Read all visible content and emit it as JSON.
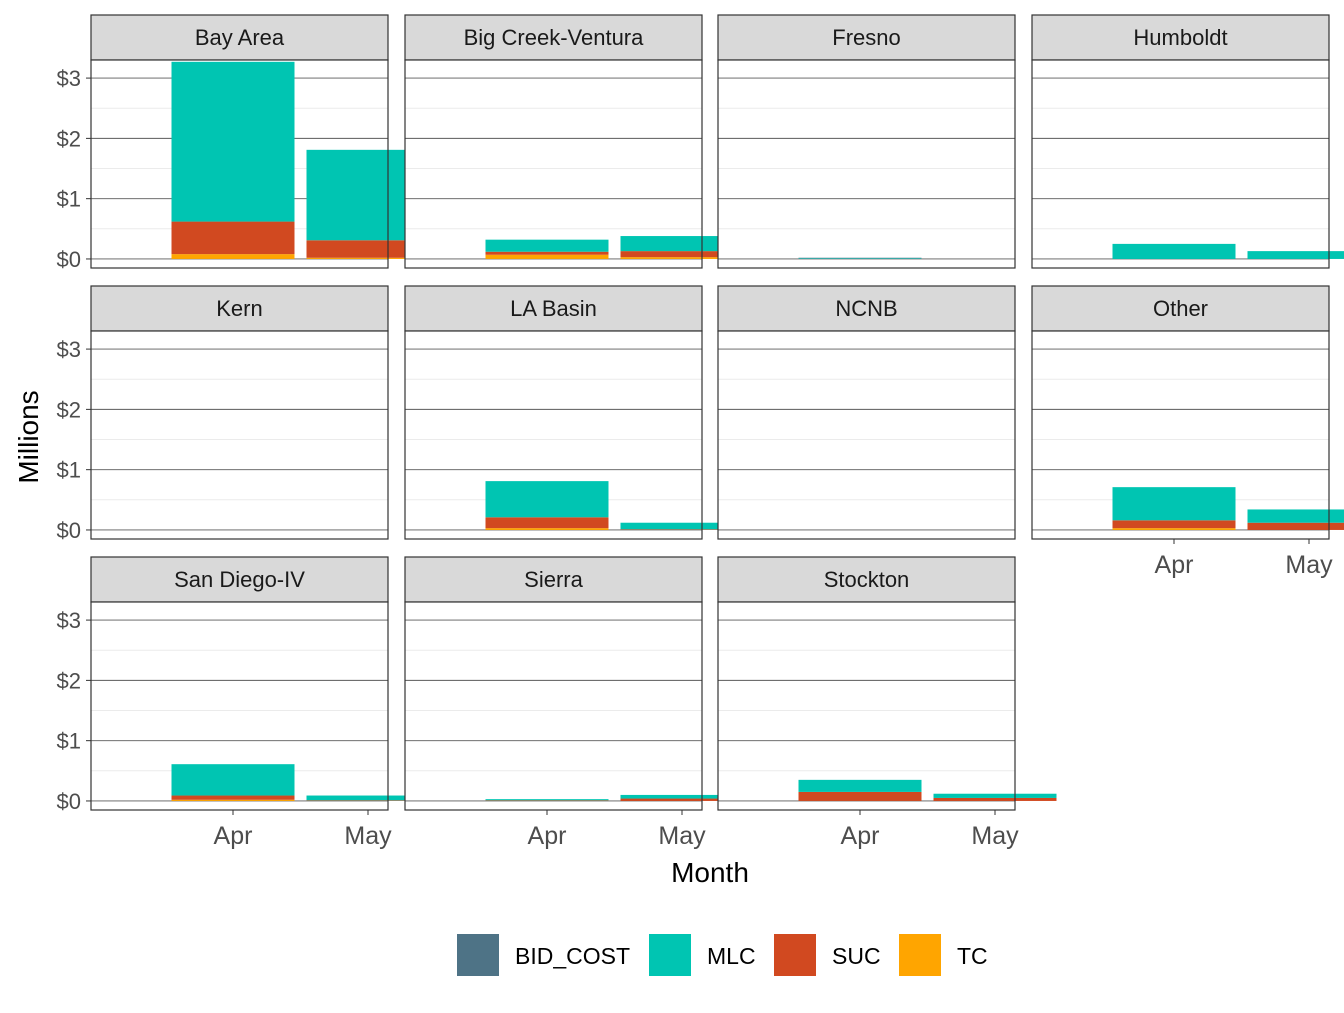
{
  "chart_data": {
    "type": "bar",
    "stacked": true,
    "facet_layout": "4 columns, 3 rows",
    "xlabel": "Month",
    "ylabel": "Millions",
    "ylim": [
      0,
      3.3
    ],
    "yticks": [
      0,
      1,
      2,
      3
    ],
    "ytick_labels": [
      "$0",
      "$1",
      "$2",
      "$3"
    ],
    "categories": [
      "Apr",
      "May"
    ],
    "series_order": [
      "BID_COST",
      "MLC",
      "SUC",
      "TC"
    ],
    "stack_order_bottom_to_top": [
      "TC",
      "SUC",
      "MLC",
      "BID_COST"
    ],
    "legend": {
      "position": "bottom",
      "items": [
        {
          "name": "BID_COST",
          "color": "#4E7386"
        },
        {
          "name": "MLC",
          "color": "#00C5B2"
        },
        {
          "name": "SUC",
          "color": "#D14920"
        },
        {
          "name": "TC",
          "color": "#FFA500"
        }
      ]
    },
    "grid": true,
    "panels": [
      {
        "title": "Bay Area",
        "values": {
          "Apr": {
            "BID_COST": 0,
            "MLC": 2.65,
            "SUC": 0.54,
            "TC": 0.08
          },
          "May": {
            "BID_COST": 0,
            "MLC": 1.5,
            "SUC": 0.29,
            "TC": 0.02
          }
        }
      },
      {
        "title": "Big Creek-Ventura",
        "values": {
          "Apr": {
            "BID_COST": 0,
            "MLC": 0.2,
            "SUC": 0.05,
            "TC": 0.07
          },
          "May": {
            "BID_COST": 0,
            "MLC": 0.25,
            "SUC": 0.1,
            "TC": 0.03
          }
        }
      },
      {
        "title": "Fresno",
        "values": {
          "Apr": {
            "BID_COST": 0.01,
            "MLC": 0.01,
            "SUC": 0,
            "TC": 0
          },
          "May": {
            "BID_COST": 0,
            "MLC": 0,
            "SUC": 0,
            "TC": 0
          }
        }
      },
      {
        "title": "Humboldt",
        "values": {
          "Apr": {
            "BID_COST": 0,
            "MLC": 0.25,
            "SUC": 0,
            "TC": 0
          },
          "May": {
            "BID_COST": 0,
            "MLC": 0.13,
            "SUC": 0,
            "TC": 0
          }
        }
      },
      {
        "title": "Kern",
        "values": {
          "Apr": {
            "BID_COST": 0,
            "MLC": 0,
            "SUC": 0,
            "TC": 0
          },
          "May": {
            "BID_COST": 0,
            "MLC": 0,
            "SUC": 0,
            "TC": 0
          }
        }
      },
      {
        "title": "LA Basin",
        "values": {
          "Apr": {
            "BID_COST": 0,
            "MLC": 0.6,
            "SUC": 0.18,
            "TC": 0.03
          },
          "May": {
            "BID_COST": 0,
            "MLC": 0.11,
            "SUC": 0.01,
            "TC": 0
          }
        }
      },
      {
        "title": "NCNB",
        "values": {
          "Apr": {
            "BID_COST": 0,
            "MLC": 0,
            "SUC": 0,
            "TC": 0
          },
          "May": {
            "BID_COST": 0,
            "MLC": 0,
            "SUC": 0,
            "TC": 0
          }
        }
      },
      {
        "title": "Other",
        "values": {
          "Apr": {
            "BID_COST": 0,
            "MLC": 0.55,
            "SUC": 0.13,
            "TC": 0.03
          },
          "May": {
            "BID_COST": 0,
            "MLC": 0.22,
            "SUC": 0.12,
            "TC": 0
          }
        }
      },
      {
        "title": "San Diego-IV",
        "values": {
          "Apr": {
            "BID_COST": 0,
            "MLC": 0.52,
            "SUC": 0.07,
            "TC": 0.02
          },
          "May": {
            "BID_COST": 0,
            "MLC": 0.08,
            "SUC": 0.01,
            "TC": 0
          }
        }
      },
      {
        "title": "Sierra",
        "values": {
          "Apr": {
            "BID_COST": 0,
            "MLC": 0.02,
            "SUC": 0.01,
            "TC": 0
          },
          "May": {
            "BID_COST": 0,
            "MLC": 0.06,
            "SUC": 0.04,
            "TC": 0
          }
        }
      },
      {
        "title": "Stockton",
        "values": {
          "Apr": {
            "BID_COST": 0,
            "MLC": 0.2,
            "SUC": 0.15,
            "TC": 0
          },
          "May": {
            "BID_COST": 0,
            "MLC": 0.07,
            "SUC": 0.05,
            "TC": 0
          }
        }
      }
    ]
  }
}
